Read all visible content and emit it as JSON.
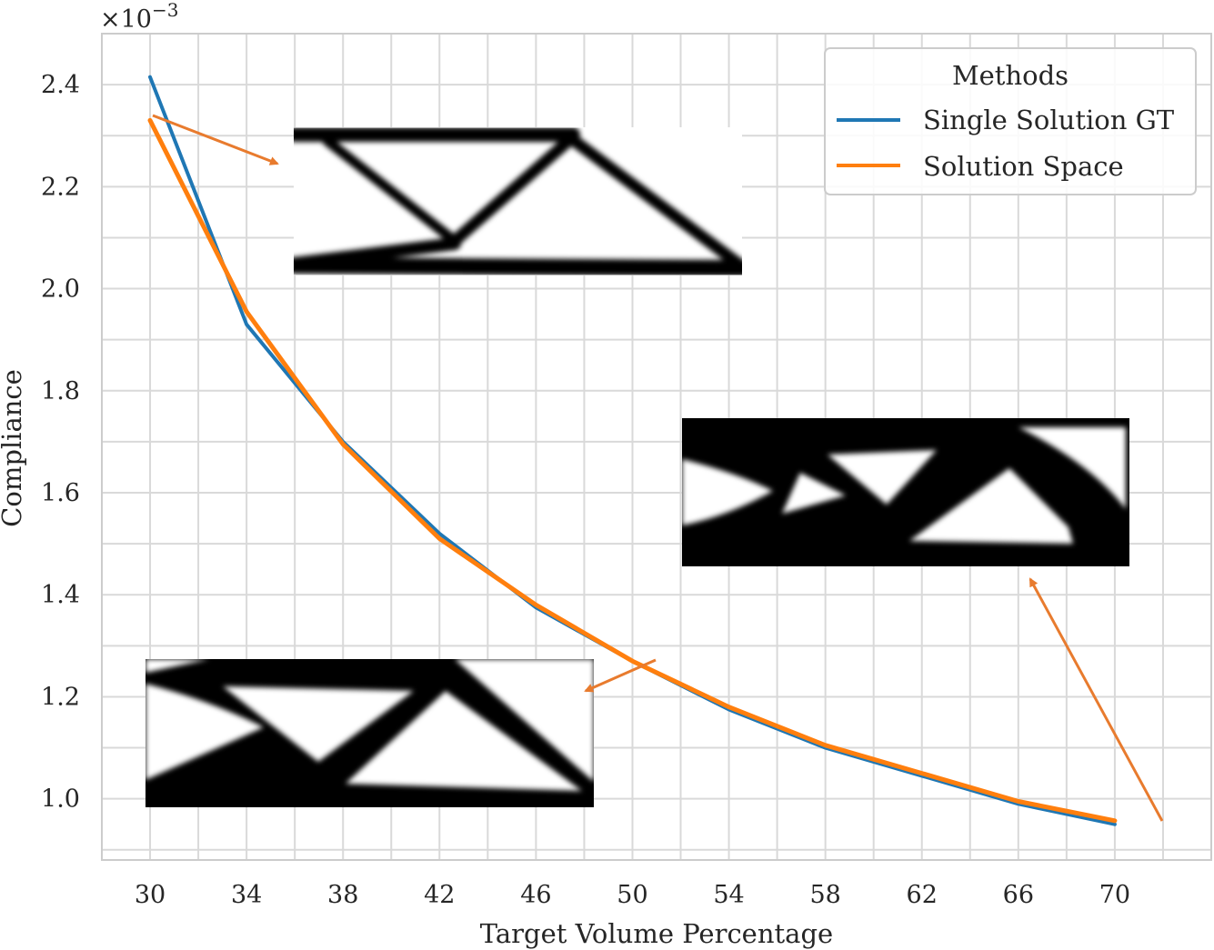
{
  "chart_data": {
    "type": "line",
    "title": "",
    "xlabel": "Target Volume Percentage",
    "ylabel": "Compliance",
    "y_multiplier_label": "×10",
    "y_multiplier_exponent": "−3",
    "x": [
      30,
      34,
      38,
      42,
      46,
      50,
      54,
      58,
      62,
      66,
      70
    ],
    "x_ticks": [
      "30",
      "34",
      "38",
      "42",
      "46",
      "50",
      "54",
      "58",
      "62",
      "66",
      "70"
    ],
    "y_ticks": [
      "1.0",
      "1.2",
      "1.4",
      "1.6",
      "1.8",
      "2.0",
      "2.2",
      "2.4"
    ],
    "y_tick_values": [
      1.0,
      1.2,
      1.4,
      1.6,
      1.8,
      2.0,
      2.2,
      2.4
    ],
    "xlim": [
      28,
      74
    ],
    "ylim": [
      0.88,
      2.5
    ],
    "grid": true,
    "legend": {
      "title": "Methods",
      "placement": "top-right"
    },
    "series": [
      {
        "name": "Single Solution GT",
        "color": "#1f77b4",
        "values": [
          2.415,
          1.93,
          1.7,
          1.52,
          1.375,
          1.27,
          1.175,
          1.1,
          1.045,
          0.99,
          0.95
        ]
      },
      {
        "name": "Solution Space",
        "color": "#ff7f0e",
        "values": [
          2.33,
          1.955,
          1.695,
          1.51,
          1.38,
          1.27,
          1.18,
          1.105,
          1.05,
          0.995,
          0.957
        ]
      }
    ],
    "annotation_color": "#e87b2e"
  }
}
